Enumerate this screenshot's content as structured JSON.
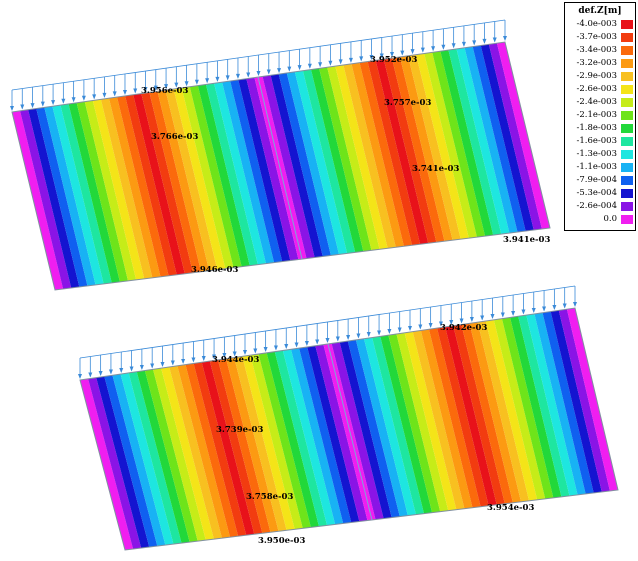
{
  "legend": {
    "title": "def.Z[m]",
    "levels": [
      {
        "label": "-4.0e-003",
        "color": "#e8121a"
      },
      {
        "label": "-3.7e-003",
        "color": "#f23c10"
      },
      {
        "label": "-3.4e-003",
        "color": "#fb6a0c"
      },
      {
        "label": "-3.2e-003",
        "color": "#fc9a12"
      },
      {
        "label": "-2.9e-003",
        "color": "#f8c020"
      },
      {
        "label": "-2.6e-003",
        "color": "#f4e418"
      },
      {
        "label": "-2.4e-003",
        "color": "#c6ec18"
      },
      {
        "label": "-2.1e-003",
        "color": "#6ee41a"
      },
      {
        "label": "-1.8e-003",
        "color": "#22d83a"
      },
      {
        "label": "-1.6e-003",
        "color": "#1ee6a0"
      },
      {
        "label": "-1.3e-003",
        "color": "#1ee6e0"
      },
      {
        "label": "-1.1e-003",
        "color": "#18b2f4"
      },
      {
        "label": "-7.9e-004",
        "color": "#1060f0"
      },
      {
        "label": "-5.3e-004",
        "color": "#1414d0"
      },
      {
        "label": "-2.6e-004",
        "color": "#8a14e6"
      },
      {
        "label": "0.0",
        "color": "#f01ef0"
      }
    ]
  },
  "upper_plate": {
    "annotations": [
      "3.956e-03",
      "3.952e-03",
      "3.757e-03",
      "3.766e-03",
      "3.741e-03",
      "3.941e-03",
      "3.946e-03"
    ]
  },
  "lower_plate": {
    "annotations": [
      "3.942e-03",
      "3.944e-03",
      "3.739e-03",
      "3.758e-03",
      "3.954e-03",
      "3.950e-03"
    ]
  }
}
